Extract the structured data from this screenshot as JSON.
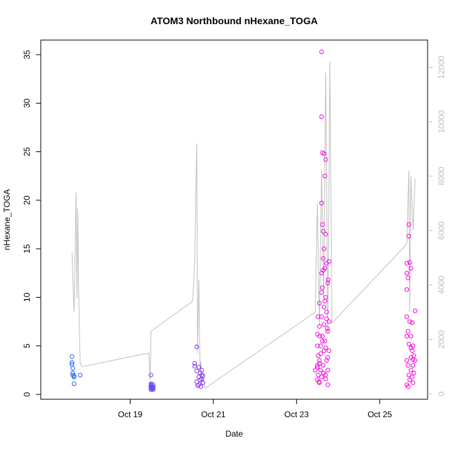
{
  "chart_data": {
    "type": "scatter",
    "title": "ATOM3 Northbound nHexane_TOGA",
    "xlabel": "Date",
    "ylabel": "nHexane_TOGA",
    "x_ticks": [
      "Oct 19",
      "Oct 21",
      "Oct 23",
      "Oct 25"
    ],
    "x_tick_days": [
      19,
      21,
      23,
      25
    ],
    "xlim_days": [
      16.85,
      26.15
    ],
    "ylim": [
      -0.5,
      36.5
    ],
    "y_ticks": [
      0,
      5,
      10,
      15,
      20,
      25,
      30,
      35
    ],
    "y2lim": [
      -200,
      13000
    ],
    "y2_ticks": [
      0,
      2000,
      4000,
      6000,
      8000,
      10000,
      12000
    ],
    "y2_color": "#bebebe",
    "grid": false,
    "line_color": "#bebebe",
    "point_style": "open-circle",
    "color_gradient": [
      "#2266ff",
      "#ff00dd"
    ],
    "line": {
      "x": [
        17.6,
        17.65,
        17.7,
        17.72,
        17.74,
        17.76,
        17.78,
        17.8,
        17.85,
        19.45,
        19.48,
        19.5,
        20.5,
        20.55,
        20.6,
        20.62,
        20.65,
        20.68,
        20.7,
        20.72,
        20.75,
        20.8,
        23.45,
        23.5,
        23.55,
        23.6,
        23.65,
        23.7,
        23.75,
        23.8,
        23.85,
        25.65,
        25.7,
        25.72,
        25.75,
        25.8,
        25.85
      ],
      "y": [
        5200,
        3000,
        7400,
        3500,
        6800,
        4000,
        2200,
        1100,
        1000,
        1500,
        500,
        2300,
        3400,
        4800,
        9200,
        1500,
        4200,
        800,
        1200,
        300,
        600,
        200,
        3000,
        7000,
        2500,
        8200,
        3500,
        11800,
        2200,
        12200,
        2600,
        5500,
        8200,
        3000,
        8000,
        6000,
        7900
      ]
    },
    "series": [
      {
        "x": [
          17.6,
          17.6,
          17.6,
          17.62,
          17.62,
          17.62,
          17.65,
          17.65,
          17.65,
          17.8
        ],
        "y": [
          3.9,
          3.3,
          3.1,
          2.7,
          2.2,
          2.0,
          1.9,
          1.8,
          1.1,
          2.0
        ]
      },
      {
        "x": [
          19.5,
          19.5,
          19.5,
          19.5,
          19.5,
          19.5,
          19.5,
          19.5,
          19.55,
          19.55,
          19.55,
          19.55,
          19.55
        ],
        "y": [
          2.0,
          1.1,
          1.0,
          0.9,
          0.8,
          0.7,
          0.6,
          0.5,
          1.0,
          0.8,
          0.7,
          0.6,
          0.5
        ]
      },
      {
        "x": [
          20.55,
          20.55,
          20.6,
          20.6,
          20.6,
          20.62,
          20.65,
          20.65,
          20.65,
          20.68,
          20.68,
          20.7,
          20.72,
          20.72,
          20.72,
          20.75,
          20.75
        ],
        "y": [
          3.2,
          2.9,
          4.9,
          2.4,
          1.3,
          0.9,
          2.8,
          1.8,
          1.0,
          2.2,
          1.5,
          0.8,
          2.5,
          2.0,
          1.6,
          1.9,
          1.2
        ]
      },
      {
        "x": [
          23.45,
          23.5,
          23.5,
          23.5,
          23.52,
          23.52,
          23.55,
          23.55,
          23.55,
          23.55,
          23.58,
          23.58,
          23.6,
          23.6,
          23.6,
          23.6,
          23.6,
          23.62,
          23.62,
          23.62,
          23.62,
          23.64,
          23.64,
          23.64,
          23.66,
          23.66,
          23.66,
          23.66,
          23.68,
          23.68,
          23.68,
          23.7,
          23.7,
          23.7,
          23.7,
          23.72,
          23.72,
          23.72,
          23.75,
          23.75,
          23.75,
          23.75,
          23.78,
          23.78,
          23.78,
          23.5,
          23.52,
          23.56,
          23.6,
          23.64,
          23.68,
          23.72,
          23.76,
          23.5,
          23.55,
          23.6,
          23.65,
          23.7,
          23.75,
          23.58,
          23.62,
          23.66,
          23.7,
          23.74,
          23.54
        ],
        "y": [
          2.5,
          5.0,
          3.0,
          1.5,
          4.0,
          2.0,
          9.4,
          7.0,
          3.5,
          1.2,
          5.0,
          2.5,
          35.3,
          28.6,
          19.7,
          12.5,
          8.0,
          24.9,
          17.5,
          11.0,
          6.0,
          16.8,
          14.0,
          3.0,
          24.8,
          15.0,
          9.0,
          4.5,
          22.5,
          13.0,
          5.5,
          24.2,
          16.5,
          10.0,
          2.0,
          13.5,
          8.5,
          3.5,
          11.5,
          6.5,
          2.5,
          1.0,
          13.7,
          7.5,
          4.5,
          6.2,
          8.0,
          6.0,
          10.5,
          12.8,
          9.6,
          7.8,
          11.8,
          2.8,
          3.2,
          1.8,
          2.2,
          1.6,
          3.8,
          4.2,
          5.5,
          7.2,
          4.8,
          6.8,
          1.3
        ]
      },
      {
        "x": [
          25.65,
          25.65,
          25.65,
          25.65,
          25.65,
          25.65,
          25.65,
          25.68,
          25.68,
          25.68,
          25.68,
          25.7,
          25.7,
          25.7,
          25.72,
          25.72,
          25.72,
          25.75,
          25.75,
          25.75,
          25.75,
          25.78,
          25.78,
          25.78,
          25.8,
          25.8,
          25.8,
          25.82,
          25.82,
          25.85,
          25.85,
          25.7,
          25.75,
          25.8
        ],
        "y": [
          13.5,
          12.5,
          10.8,
          8.0,
          6.0,
          3.5,
          1.0,
          12.0,
          6.5,
          3.0,
          0.8,
          17.5,
          16.3,
          2.0,
          13.6,
          7.5,
          1.5,
          13.0,
          6.0,
          3.8,
          2.5,
          7.4,
          4.5,
          1.8,
          5.0,
          3.0,
          1.2,
          4.0,
          2.2,
          8.6,
          3.5,
          5.2,
          4.8,
          3.6
        ]
      }
    ]
  }
}
